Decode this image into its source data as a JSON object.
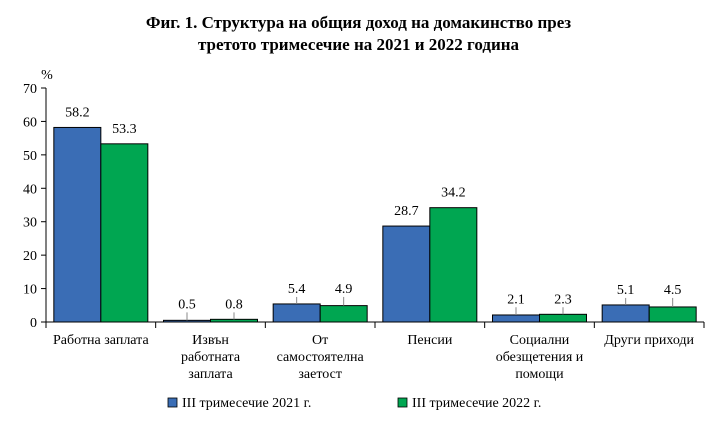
{
  "chart_data": {
    "type": "bar",
    "title_lines": [
      "Фиг. 1. Структура на общия доход на домакинство през",
      "третото тримесечие на 2021 и 2022 година"
    ],
    "y_unit": "%",
    "ylim": [
      0,
      70
    ],
    "y_ticks": [
      0,
      10,
      20,
      30,
      40,
      50,
      60,
      70
    ],
    "grid": false,
    "categories": [
      [
        "Работна заплата"
      ],
      [
        "Извън",
        "работната",
        "заплата"
      ],
      [
        "От",
        "самостоятелна",
        "заетост"
      ],
      [
        "Пенсии"
      ],
      [
        "Социални",
        "обезщетения и",
        "помощи"
      ],
      [
        "Други приходи"
      ]
    ],
    "series": [
      {
        "name": "III тримесечие 2021 г.",
        "color": "#3a6db5",
        "values": [
          58.2,
          0.5,
          5.4,
          28.7,
          2.1,
          5.1
        ],
        "labels": [
          "58.2",
          "0.5",
          "5.4",
          "28.7",
          "2.1",
          "5.1"
        ]
      },
      {
        "name": "III тримесечие 2022 г.",
        "color": "#00a651",
        "values": [
          53.3,
          0.8,
          4.9,
          34.2,
          2.3,
          4.5
        ],
        "labels": [
          "53.3",
          "0.8",
          "4.9",
          "34.2",
          "2.3",
          "4.5"
        ]
      }
    ],
    "legend_position": "bottom"
  }
}
